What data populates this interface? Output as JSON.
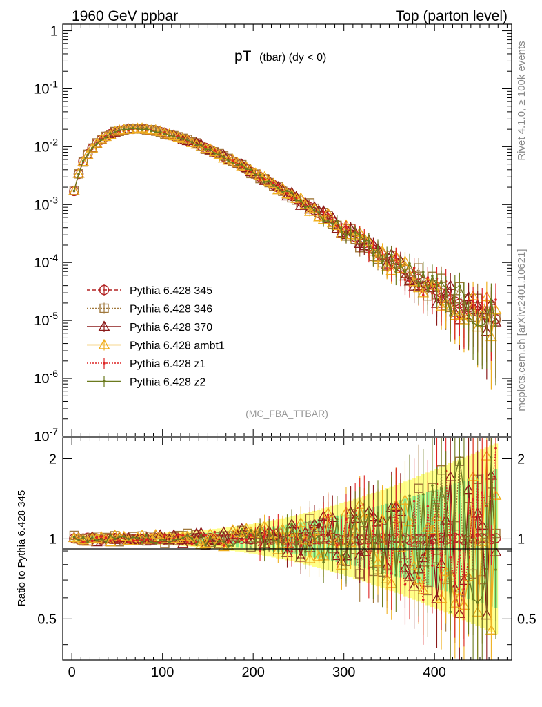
{
  "header": {
    "left": "1960 GeV ppbar",
    "right": "Top (parton level)"
  },
  "side": {
    "rivet": "Rivet 4.1.0, ≥ 100k events",
    "mcplots": "mcplots.cern.ch [arXiv:2401.10621]"
  },
  "title": {
    "main": "pT",
    "sub": "(tbar) (dy < 0)"
  },
  "analysis": "(MC_FBA_TTBAR)",
  "ratio_ylabel": "Ratio to Pythia 6.428 345",
  "colors": {
    "p345": "#b22222",
    "p346": "#a0783c",
    "p370": "#8b1a1a",
    "ambt1": "#f0b020",
    "z1": "#dd2222",
    "z2": "#6b7a1e",
    "band_yellow": "#ffff88",
    "band_green": "#88ee88"
  },
  "chart_data": [
    {
      "type": "line",
      "title": "pT (tbar) (dy < 0)",
      "xlabel": "",
      "ylabel": "",
      "xlim": [
        -10,
        485
      ],
      "ylim": [
        1e-07,
        1.3
      ],
      "yscale": "log",
      "x_ticks": [
        0,
        100,
        200,
        300,
        400
      ],
      "y_tick_labels": [
        "1",
        "10^-1",
        "10^-2",
        "10^-3",
        "10^-4",
        "10^-5",
        "10^-6",
        "10^-7"
      ],
      "legend": [
        {
          "name": "Pythia 6.428 345",
          "marker": "circle-open",
          "line": "dashed",
          "color_key": "p345"
        },
        {
          "name": "Pythia 6.428 346",
          "marker": "square-open",
          "line": "dotted",
          "color_key": "p346"
        },
        {
          "name": "Pythia 6.428 370",
          "marker": "triangle-open",
          "line": "solid",
          "color_key": "p370"
        },
        {
          "name": "Pythia 6.428 ambt1",
          "marker": "triangle-open",
          "line": "solid",
          "color_key": "ambt1"
        },
        {
          "name": "Pythia 6.428 z1",
          "marker": "dot",
          "line": "dotted",
          "color_key": "z1"
        },
        {
          "name": "Pythia 6.428 z2",
          "marker": "dot",
          "line": "solid",
          "color_key": "z2"
        }
      ],
      "reference_curve": {
        "x": [
          2.5,
          10,
          20,
          30,
          40,
          50,
          60,
          70,
          80,
          90,
          100,
          120,
          140,
          160,
          180,
          200,
          220,
          240,
          260,
          280,
          300,
          320,
          340,
          360,
          380,
          400,
          420,
          440,
          460,
          470
        ],
        "y": [
          0.0017,
          0.0048,
          0.0085,
          0.0125,
          0.0158,
          0.0185,
          0.0198,
          0.0205,
          0.0201,
          0.019,
          0.0175,
          0.014,
          0.0108,
          0.0078,
          0.0053,
          0.0035,
          0.0023,
          0.0015,
          0.00095,
          0.0006,
          0.00037,
          0.00023,
          0.00014,
          9e-05,
          5.5e-05,
          3.5e-05,
          2.2e-05,
          1.6e-05,
          1.2e-05,
          1e-05
        ]
      }
    },
    {
      "type": "line",
      "title": "",
      "xlabel": "",
      "ylabel": "Ratio to Pythia 6.428 345",
      "xlim": [
        -10,
        485
      ],
      "ylim": [
        0.35,
        2.4
      ],
      "yscale": "log",
      "x_ticks": [
        0,
        100,
        200,
        300,
        400
      ],
      "y_ticks": [
        0.5,
        1,
        2
      ],
      "y_tick_labels": [
        "0.5",
        "1",
        "2"
      ]
    }
  ]
}
